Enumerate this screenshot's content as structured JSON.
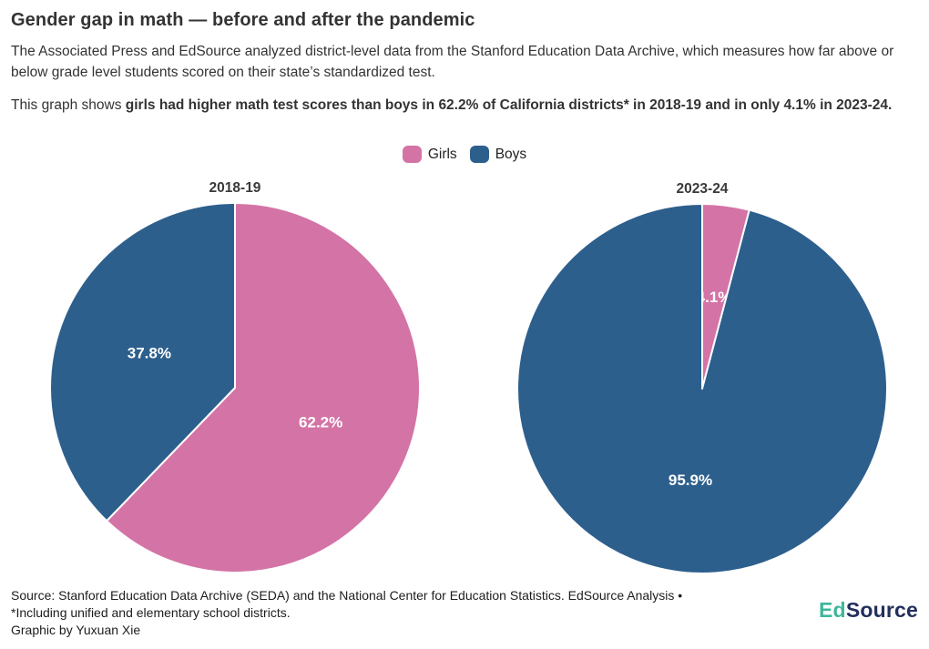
{
  "header": {
    "title": "Gender gap in math — before and after the pandemic",
    "description": "The Associated Press and EdSource analyzed district-level data from the Stanford Education Data Archive, which measures how far above or below grade level students scored on their state’s standardized test.",
    "lead_in": "This graph shows ",
    "highlight": "girls had higher math test scores than boys in 62.2% of California districts* in 2018-19 and in only 4.1% in 2023-24."
  },
  "legend": {
    "items": [
      {
        "label": "Girls",
        "color": "#d473a6"
      },
      {
        "label": "Boys",
        "color": "#2d5f8d"
      }
    ]
  },
  "chart_data": [
    {
      "type": "pie",
      "title": "2018-19",
      "labels": [
        "Girls",
        "Boys"
      ],
      "values": [
        62.2,
        37.8
      ],
      "data_labels": [
        "62.2%",
        "37.8%"
      ],
      "colors": [
        "#d473a6",
        "#2d5f8d"
      ],
      "units": "%",
      "start_angle_deg": 0,
      "direction": "clockwise",
      "label_color": "#ffffff",
      "slice_border_color": "#ffffff"
    },
    {
      "type": "pie",
      "title": "2023-24",
      "labels": [
        "Girls",
        "Boys"
      ],
      "values": [
        4.1,
        95.9
      ],
      "data_labels": [
        "4.1%",
        "95.9%"
      ],
      "colors": [
        "#d473a6",
        "#2d5f8d"
      ],
      "units": "%",
      "start_angle_deg": 0,
      "direction": "clockwise",
      "label_color": "#ffffff",
      "slice_border_color": "#ffffff"
    }
  ],
  "footer": {
    "source_line": "Source: Stanford Education Data Archive (SEDA) and the National Center for Education Statistics. EdSource Analysis •",
    "note_line": "*Including unified and elementary school districts.",
    "credit_line": "Graphic by Yuxuan Xie",
    "logo": {
      "part1": "Ed",
      "part1_color": "#3eb79b",
      "part2": "Source",
      "part2_color": "#232f5c"
    }
  }
}
